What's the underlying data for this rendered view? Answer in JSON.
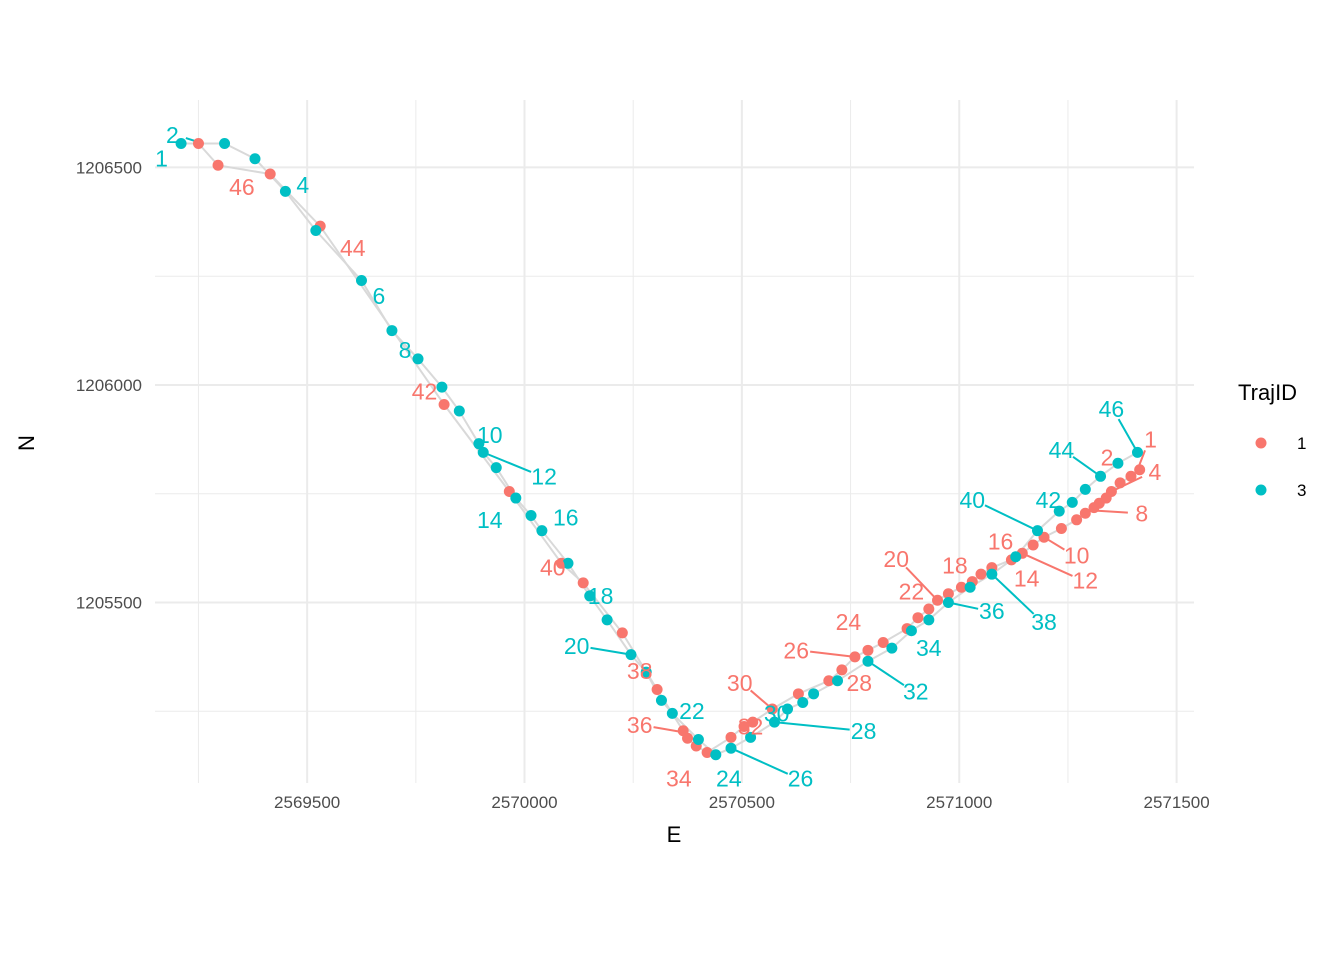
{
  "chart_data": {
    "type": "scatter",
    "xlabel": "E",
    "ylabel": "N",
    "xlim": [
      2569150,
      2571540
    ],
    "ylim": [
      1205085,
      1206655
    ],
    "x_ticks": [
      2569500,
      2570000,
      2570500,
      2571000,
      2571500
    ],
    "x_tick_labels": [
      "2569500",
      "2570000",
      "2570500",
      "2571000",
      "2571500"
    ],
    "y_ticks": [
      1205500,
      1206000,
      1206500
    ],
    "y_tick_labels": [
      "1205500",
      "1206000",
      "1206500"
    ],
    "grid": true,
    "legend": {
      "title": "TrajID",
      "position": "right"
    },
    "path_color": "#d9d9d9",
    "series": [
      {
        "name": "1",
        "color": "#F8766D",
        "points": [
          {
            "x": 2571415,
            "y": 1205805
          },
          {
            "x": 2571395,
            "y": 1205790
          },
          {
            "x": 2571370,
            "y": 1205775
          },
          {
            "x": 2571350,
            "y": 1205755
          },
          {
            "x": 2571338,
            "y": 1205740
          },
          {
            "x": 2571322,
            "y": 1205728
          },
          {
            "x": 2571310,
            "y": 1205718
          },
          {
            "x": 2571290,
            "y": 1205705
          },
          {
            "x": 2571270,
            "y": 1205690
          },
          {
            "x": 2571235,
            "y": 1205670
          },
          {
            "x": 2571195,
            "y": 1205650
          },
          {
            "x": 2571170,
            "y": 1205632
          },
          {
            "x": 2571145,
            "y": 1205613
          },
          {
            "x": 2571120,
            "y": 1205598
          },
          {
            "x": 2571075,
            "y": 1205580
          },
          {
            "x": 2571050,
            "y": 1205565
          },
          {
            "x": 2571030,
            "y": 1205548
          },
          {
            "x": 2571005,
            "y": 1205535
          },
          {
            "x": 2570975,
            "y": 1205520
          },
          {
            "x": 2570950,
            "y": 1205505
          },
          {
            "x": 2570930,
            "y": 1205485
          },
          {
            "x": 2570905,
            "y": 1205465
          },
          {
            "x": 2570880,
            "y": 1205440
          },
          {
            "x": 2570825,
            "y": 1205408
          },
          {
            "x": 2570790,
            "y": 1205390
          },
          {
            "x": 2570760,
            "y": 1205375
          },
          {
            "x": 2570730,
            "y": 1205345
          },
          {
            "x": 2570700,
            "y": 1205320
          },
          {
            "x": 2570630,
            "y": 1205290
          },
          {
            "x": 2570570,
            "y": 1205255
          },
          {
            "x": 2570525,
            "y": 1205225
          },
          {
            "x": 2570505,
            "y": 1205215
          },
          {
            "x": 2570475,
            "y": 1205190
          },
          {
            "x": 2570420,
            "y": 1205155
          },
          {
            "x": 2570395,
            "y": 1205170
          },
          {
            "x": 2570375,
            "y": 1205188
          },
          {
            "x": 2570365,
            "y": 1205205
          },
          {
            "x": 2570305,
            "y": 1205300
          },
          {
            "x": 2570225,
            "y": 1205430
          },
          {
            "x": 2570135,
            "y": 1205545
          },
          {
            "x": 2570085,
            "y": 1205590
          },
          {
            "x": 2569965,
            "y": 1205755
          },
          {
            "x": 2569815,
            "y": 1205955
          },
          {
            "x": 2569530,
            "y": 1206365
          },
          {
            "x": 2569415,
            "y": 1206485
          },
          {
            "x": 2569295,
            "y": 1206505
          },
          {
            "x": 2569250,
            "y": 1206555
          }
        ],
        "labels": [
          {
            "text": "1",
            "x": 2571410,
            "y": 1205805,
            "lx": 2571440,
            "ly": 1205875,
            "leader": true
          },
          {
            "text": "2",
            "x": 2571370,
            "y": 1205775,
            "lx": 2571340,
            "ly": 1205833,
            "leader": false
          },
          {
            "text": "4",
            "x": 2571350,
            "y": 1205755,
            "lx": 2571450,
            "ly": 1205800,
            "leader": true
          },
          {
            "text": "8",
            "x": 2571300,
            "y": 1205712,
            "lx": 2571420,
            "ly": 1205705,
            "leader": true
          },
          {
            "text": "10",
            "x": 2571195,
            "y": 1205650,
            "lx": 2571270,
            "ly": 1205608,
            "leader": true
          },
          {
            "text": "12",
            "x": 2571145,
            "y": 1205613,
            "lx": 2571290,
            "ly": 1205550,
            "leader": true
          },
          {
            "text": "14",
            "x": 2571120,
            "y": 1205598,
            "lx": 2571155,
            "ly": 1205555,
            "leader": false
          },
          {
            "text": "16",
            "x": 2571075,
            "y": 1205580,
            "lx": 2571095,
            "ly": 1205640,
            "leader": false
          },
          {
            "text": "18",
            "x": 2570995,
            "y": 1205525,
            "lx": 2570990,
            "ly": 1205585,
            "leader": false
          },
          {
            "text": "20",
            "x": 2570950,
            "y": 1205505,
            "lx": 2570855,
            "ly": 1205600,
            "leader": true
          },
          {
            "text": "22",
            "x": 2570930,
            "y": 1205485,
            "lx": 2570890,
            "ly": 1205525,
            "leader": false
          },
          {
            "text": "24",
            "x": 2570800,
            "y": 1205400,
            "lx": 2570745,
            "ly": 1205455,
            "leader": false
          },
          {
            "text": "26",
            "x": 2570760,
            "y": 1205375,
            "lx": 2570625,
            "ly": 1205390,
            "leader": true
          },
          {
            "text": "28",
            "x": 2570730,
            "y": 1205345,
            "lx": 2570770,
            "ly": 1205315,
            "leader": false
          },
          {
            "text": "30",
            "x": 2570570,
            "y": 1205255,
            "lx": 2570495,
            "ly": 1205315,
            "leader": true
          },
          {
            "text": "32",
            "x": 2570525,
            "y": 1205225,
            "lx": 2570520,
            "ly": 1205215,
            "leader": false
          },
          {
            "text": "34",
            "x": 2570420,
            "y": 1205155,
            "lx": 2570355,
            "ly": 1205095,
            "leader": false
          },
          {
            "text": "36",
            "x": 2570375,
            "y": 1205200,
            "lx": 2570265,
            "ly": 1205218,
            "leader": true
          },
          {
            "text": "38",
            "x": 2570305,
            "y": 1205300,
            "lx": 2570265,
            "ly": 1205342,
            "leader": false
          },
          {
            "text": "40",
            "x": 2570085,
            "y": 1205590,
            "lx": 2570065,
            "ly": 1205580,
            "leader": false
          },
          {
            "text": "42",
            "x": 2569815,
            "y": 1205955,
            "lx": 2569770,
            "ly": 1205985,
            "leader": false
          },
          {
            "text": "44",
            "x": 2569530,
            "y": 1206365,
            "lx": 2569605,
            "ly": 1206315,
            "leader": false
          },
          {
            "text": "46",
            "x": 2569415,
            "y": 1206485,
            "lx": 2569350,
            "ly": 1206455,
            "leader": false
          }
        ]
      },
      {
        "name": "3",
        "color": "#00BFC4",
        "points": [
          {
            "x": 2569210,
            "y": 1206555
          },
          {
            "x": 2569310,
            "y": 1206555
          },
          {
            "x": 2569380,
            "y": 1206520
          },
          {
            "x": 2569450,
            "y": 1206445
          },
          {
            "x": 2569520,
            "y": 1206355
          },
          {
            "x": 2569625,
            "y": 1206240
          },
          {
            "x": 2569695,
            "y": 1206125
          },
          {
            "x": 2569755,
            "y": 1206060
          },
          {
            "x": 2569810,
            "y": 1205995
          },
          {
            "x": 2569850,
            "y": 1205940
          },
          {
            "x": 2569895,
            "y": 1205865
          },
          {
            "x": 2569905,
            "y": 1205845
          },
          {
            "x": 2569935,
            "y": 1205810
          },
          {
            "x": 2569980,
            "y": 1205740
          },
          {
            "x": 2570015,
            "y": 1205700
          },
          {
            "x": 2570040,
            "y": 1205665
          },
          {
            "x": 2570100,
            "y": 1205590
          },
          {
            "x": 2570150,
            "y": 1205515
          },
          {
            "x": 2570190,
            "y": 1205460
          },
          {
            "x": 2570245,
            "y": 1205380
          },
          {
            "x": 2570280,
            "y": 1205340
          },
          {
            "x": 2570315,
            "y": 1205275
          },
          {
            "x": 2570340,
            "y": 1205245
          },
          {
            "x": 2570400,
            "y": 1205185
          },
          {
            "x": 2570440,
            "y": 1205150
          },
          {
            "x": 2570475,
            "y": 1205165
          },
          {
            "x": 2570520,
            "y": 1205190
          },
          {
            "x": 2570575,
            "y": 1205225
          },
          {
            "x": 2570605,
            "y": 1205255
          },
          {
            "x": 2570640,
            "y": 1205270
          },
          {
            "x": 2570665,
            "y": 1205290
          },
          {
            "x": 2570720,
            "y": 1205320
          },
          {
            "x": 2570790,
            "y": 1205365
          },
          {
            "x": 2570845,
            "y": 1205395
          },
          {
            "x": 2570890,
            "y": 1205435
          },
          {
            "x": 2570930,
            "y": 1205460
          },
          {
            "x": 2570975,
            "y": 1205500
          },
          {
            "x": 2571025,
            "y": 1205535
          },
          {
            "x": 2571075,
            "y": 1205565
          },
          {
            "x": 2571130,
            "y": 1205605
          },
          {
            "x": 2571180,
            "y": 1205665
          },
          {
            "x": 2571230,
            "y": 1205710
          },
          {
            "x": 2571260,
            "y": 1205730
          },
          {
            "x": 2571290,
            "y": 1205760
          },
          {
            "x": 2571325,
            "y": 1205790
          },
          {
            "x": 2571365,
            "y": 1205820
          },
          {
            "x": 2571410,
            "y": 1205845
          }
        ],
        "labels": [
          {
            "text": "1",
            "x": 2569210,
            "y": 1206555,
            "lx": 2569165,
            "ly": 1206520,
            "leader": false
          },
          {
            "text": "2",
            "x": 2569260,
            "y": 1206555,
            "lx": 2569190,
            "ly": 1206575,
            "leader": true
          },
          {
            "text": "4",
            "x": 2569450,
            "y": 1206445,
            "lx": 2569490,
            "ly": 1206460,
            "leader": false
          },
          {
            "text": "6",
            "x": 2569625,
            "y": 1206240,
            "lx": 2569665,
            "ly": 1206205,
            "leader": false
          },
          {
            "text": "8",
            "x": 2569755,
            "y": 1206060,
            "lx": 2569725,
            "ly": 1206080,
            "leader": false
          },
          {
            "text": "10",
            "x": 2569895,
            "y": 1205865,
            "lx": 2569920,
            "ly": 1205885,
            "leader": false
          },
          {
            "text": "12",
            "x": 2569905,
            "y": 1205845,
            "lx": 2570045,
            "ly": 1205790,
            "leader": true
          },
          {
            "text": "14",
            "x": 2570015,
            "y": 1205700,
            "lx": 2569920,
            "ly": 1205690,
            "leader": false
          },
          {
            "text": "16",
            "x": 2570040,
            "y": 1205665,
            "lx": 2570095,
            "ly": 1205695,
            "leader": false
          },
          {
            "text": "18",
            "x": 2570150,
            "y": 1205515,
            "lx": 2570175,
            "ly": 1205515,
            "leader": false
          },
          {
            "text": "20",
            "x": 2570245,
            "y": 1205380,
            "lx": 2570120,
            "ly": 1205400,
            "leader": true
          },
          {
            "text": "22",
            "x": 2570340,
            "y": 1205245,
            "lx": 2570385,
            "ly": 1205250,
            "leader": false
          },
          {
            "text": "24",
            "x": 2570440,
            "y": 1205150,
            "lx": 2570470,
            "ly": 1205095,
            "leader": false
          },
          {
            "text": "26",
            "x": 2570475,
            "y": 1205165,
            "lx": 2570635,
            "ly": 1205095,
            "leader": true
          },
          {
            "text": "28",
            "x": 2570575,
            "y": 1205225,
            "lx": 2570780,
            "ly": 1205205,
            "leader": true
          },
          {
            "text": "30",
            "x": 2570605,
            "y": 1205255,
            "lx": 2570580,
            "ly": 1205245,
            "leader": false
          },
          {
            "text": "32",
            "x": 2570790,
            "y": 1205365,
            "lx": 2570900,
            "ly": 1205295,
            "leader": true
          },
          {
            "text": "34",
            "x": 2570930,
            "y": 1205460,
            "lx": 2570930,
            "ly": 1205395,
            "leader": false
          },
          {
            "text": "36",
            "x": 2570975,
            "y": 1205500,
            "lx": 2571075,
            "ly": 1205480,
            "leader": true
          },
          {
            "text": "38",
            "x": 2571075,
            "y": 1205565,
            "lx": 2571195,
            "ly": 1205455,
            "leader": true
          },
          {
            "text": "40",
            "x": 2571180,
            "y": 1205665,
            "lx": 2571030,
            "ly": 1205735,
            "leader": true
          },
          {
            "text": "42",
            "x": 2571230,
            "y": 1205710,
            "lx": 2571205,
            "ly": 1205735,
            "leader": false
          },
          {
            "text": "44",
            "x": 2571325,
            "y": 1205790,
            "lx": 2571235,
            "ly": 1205850,
            "leader": true
          },
          {
            "text": "46",
            "x": 2571410,
            "y": 1205845,
            "lx": 2571350,
            "ly": 1205945,
            "leader": true
          }
        ]
      }
    ]
  }
}
